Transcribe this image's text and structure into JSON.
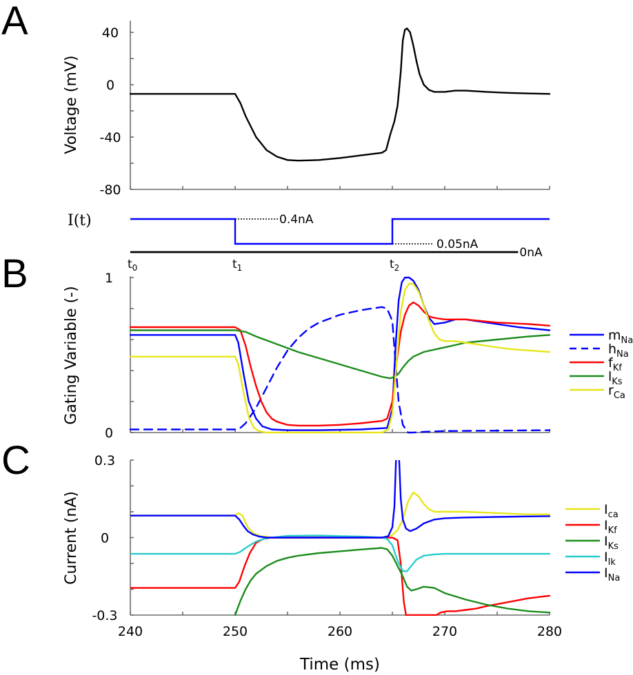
{
  "figure": {
    "panels": {
      "A": "A",
      "B": "B",
      "C": "C"
    }
  },
  "chart_data": [
    {
      "id": "A",
      "type": "line",
      "title": "",
      "xlabel": "",
      "ylabel": "Voltage (mV)",
      "xlim": [
        240,
        280
      ],
      "ylim": [
        -80,
        48
      ],
      "yticks": [
        -80,
        -60,
        -40,
        -20,
        0,
        20,
        40
      ],
      "ytick_labels": [
        {
          "value": -80,
          "label": "-80"
        },
        {
          "value": -40,
          "label": "-40"
        },
        {
          "value": 0,
          "label": "0"
        },
        {
          "value": 40,
          "label": "40"
        }
      ],
      "xticks": [
        240,
        245,
        250,
        255,
        260,
        265,
        270,
        275,
        280
      ],
      "series": [
        {
          "name": "V",
          "color": "#000000",
          "x": [
            240,
            250,
            250.5,
            251,
            252,
            253,
            254,
            255,
            256,
            257,
            258,
            260,
            262,
            263,
            264,
            264.4,
            264.8,
            265.2,
            265.5,
            265.8,
            266.0,
            266.2,
            266.4,
            266.7,
            267.0,
            267.3,
            267.6,
            268.0,
            268.5,
            269,
            270,
            271,
            272,
            274,
            276,
            278,
            280
          ],
          "y": [
            -7,
            -7,
            -14,
            -24,
            -40,
            -50,
            -55,
            -57.5,
            -58,
            -57.8,
            -57.5,
            -56,
            -54,
            -53,
            -52,
            -50,
            -38,
            -28,
            -16,
            10,
            34,
            42,
            43,
            40,
            30,
            18,
            8,
            0,
            -4,
            -5.5,
            -5.5,
            -4.5,
            -4.5,
            -5.5,
            -6.2,
            -6.7,
            -7
          ]
        }
      ]
    },
    {
      "id": "stimulus",
      "type": "line",
      "ylabel": "I(t)",
      "xlim": [
        240,
        280
      ],
      "series": [
        {
          "name": "I(t)",
          "color": "#0000ff",
          "x": [
            240,
            250,
            250,
            265,
            265,
            280
          ],
          "y": [
            0.4,
            0.4,
            0.05,
            0.05,
            0.4,
            0.4
          ]
        },
        {
          "name": "baseline",
          "color": "#000000",
          "x": [
            240,
            277
          ],
          "y": [
            0,
            0
          ]
        }
      ],
      "annotations": [
        {
          "text": "0.4nA",
          "x": 250,
          "level": "high"
        },
        {
          "text": "0.05nA",
          "x": 265,
          "level": "low"
        },
        {
          "text": "0nA",
          "x": 277,
          "level": "zero"
        }
      ],
      "time_markers": [
        {
          "label": "t",
          "sub": "0",
          "x": 240
        },
        {
          "label": "t",
          "sub": "1",
          "x": 250
        },
        {
          "label": "t",
          "sub": "2",
          "x": 265
        }
      ]
    },
    {
      "id": "B",
      "type": "line",
      "xlabel": "",
      "ylabel": "Gating Variable (-)",
      "xlim": [
        240,
        280
      ],
      "ylim": [
        0,
        1
      ],
      "yticks": [
        0,
        0.2,
        0.4,
        0.6,
        0.8,
        1
      ],
      "ytick_labels": [
        {
          "value": 0,
          "label": "0"
        },
        {
          "value": 1,
          "label": "1"
        }
      ],
      "xticks": [
        240,
        245,
        250,
        255,
        260,
        265,
        270,
        275,
        280
      ],
      "legend": "right",
      "series": [
        {
          "name": "m",
          "sub": "Na",
          "color": "#0000ff",
          "dash": false,
          "x": [
            240,
            250,
            250.3,
            250.8,
            251.3,
            252,
            252.6,
            253.5,
            255,
            258,
            262,
            264.5,
            265,
            265.3,
            265.6,
            265.9,
            266.2,
            266.6,
            267,
            267.5,
            268,
            268.5,
            269,
            270,
            271,
            272,
            274,
            277,
            280
          ],
          "y": [
            0.63,
            0.63,
            0.58,
            0.38,
            0.2,
            0.09,
            0.04,
            0.02,
            0.015,
            0.015,
            0.02,
            0.03,
            0.15,
            0.55,
            0.85,
            0.97,
            1.0,
            1.0,
            0.98,
            0.92,
            0.82,
            0.74,
            0.7,
            0.71,
            0.73,
            0.73,
            0.71,
            0.68,
            0.66
          ]
        },
        {
          "name": "h",
          "sub": "Na",
          "color": "#0000ff",
          "dash": true,
          "x": [
            240,
            250,
            250.5,
            251,
            252,
            253,
            254,
            255,
            256,
            257,
            258,
            260,
            262,
            263,
            264,
            264.5,
            265,
            265.3,
            265.6,
            266,
            266.5,
            267,
            268,
            270,
            280
          ],
          "y": [
            0.02,
            0.02,
            0.03,
            0.06,
            0.16,
            0.29,
            0.42,
            0.53,
            0.61,
            0.67,
            0.71,
            0.76,
            0.79,
            0.8,
            0.81,
            0.8,
            0.72,
            0.45,
            0.2,
            0.05,
            0.0,
            0.0,
            0.005,
            0.01,
            0.015
          ]
        },
        {
          "name": "f",
          "sub": "Kf",
          "color": "#ff0000",
          "dash": false,
          "x": [
            240,
            250,
            250.5,
            251,
            251.5,
            252,
            252.5,
            253,
            253.5,
            254,
            255,
            256,
            258,
            260,
            262,
            264,
            264.5,
            265,
            265.4,
            265.8,
            266.2,
            266.6,
            267,
            267.5,
            268,
            268.5,
            269,
            270,
            272,
            275,
            278,
            280
          ],
          "y": [
            0.68,
            0.68,
            0.66,
            0.56,
            0.42,
            0.3,
            0.2,
            0.13,
            0.09,
            0.07,
            0.05,
            0.045,
            0.045,
            0.05,
            0.06,
            0.075,
            0.09,
            0.2,
            0.45,
            0.65,
            0.76,
            0.82,
            0.84,
            0.82,
            0.78,
            0.75,
            0.74,
            0.73,
            0.73,
            0.71,
            0.7,
            0.69
          ]
        },
        {
          "name": "l",
          "sub": "Ks",
          "color": "#1a8c1a",
          "dash": false,
          "x": [
            240,
            250,
            251,
            252,
            254,
            256,
            258,
            260,
            262,
            264,
            264.8,
            265.2,
            265.6,
            266,
            266.5,
            267,
            268,
            270,
            272,
            275,
            278,
            280
          ],
          "y": [
            0.66,
            0.66,
            0.65,
            0.62,
            0.57,
            0.52,
            0.48,
            0.44,
            0.4,
            0.36,
            0.35,
            0.36,
            0.38,
            0.42,
            0.46,
            0.49,
            0.52,
            0.55,
            0.58,
            0.6,
            0.62,
            0.63
          ]
        },
        {
          "name": "r",
          "sub": "Ca",
          "color": "#e6e619",
          "dash": false,
          "x": [
            240,
            250,
            250.3,
            250.8,
            251.3,
            251.8,
            252.3,
            253,
            255,
            260,
            264,
            264.6,
            265,
            265.4,
            265.8,
            266.2,
            266.6,
            267,
            267.5,
            268,
            268.5,
            269,
            269.5,
            270,
            271,
            272,
            274,
            276,
            278,
            280
          ],
          "y": [
            0.49,
            0.49,
            0.44,
            0.26,
            0.1,
            0.03,
            0.008,
            0.0,
            0.0,
            0.0,
            0.0,
            0.02,
            0.12,
            0.45,
            0.78,
            0.92,
            0.96,
            0.96,
            0.91,
            0.82,
            0.72,
            0.64,
            0.6,
            0.59,
            0.59,
            0.58,
            0.56,
            0.54,
            0.53,
            0.52
          ]
        }
      ]
    },
    {
      "id": "C",
      "type": "line",
      "xlabel": "Time (ms)",
      "ylabel": "Current (nA)",
      "xlim": [
        240,
        280
      ],
      "ylim": [
        -0.3,
        0.3
      ],
      "yticks": [
        -0.3,
        -0.2,
        -0.1,
        0,
        0.1,
        0.2,
        0.3
      ],
      "ytick_labels": [
        {
          "value": -0.3,
          "label": "-0.3"
        },
        {
          "value": 0,
          "label": "0"
        },
        {
          "value": 0.3,
          "label": "0.3"
        }
      ],
      "xticks": [
        240,
        245,
        250,
        255,
        260,
        265,
        270,
        275,
        280
      ],
      "xtick_labels": [
        {
          "value": 240,
          "label": "240"
        },
        {
          "value": 250,
          "label": "250"
        },
        {
          "value": 260,
          "label": "260"
        },
        {
          "value": 270,
          "label": "270"
        },
        {
          "value": 280,
          "label": "280"
        }
      ],
      "legend": "right",
      "series": [
        {
          "name": "I",
          "sub": "ca",
          "color": "#e6e619",
          "x": [
            240,
            250,
            250.3,
            250.7,
            251.2,
            251.8,
            252.5,
            253.5,
            255,
            260,
            264,
            265,
            265.5,
            266,
            266.5,
            267,
            267.5,
            268,
            268.5,
            269,
            270,
            272,
            275,
            278,
            280
          ],
          "y": [
            0.085,
            0.085,
            0.095,
            0.085,
            0.04,
            0.015,
            0.005,
            0.0,
            0.0,
            0.0,
            0.0,
            0.01,
            0.03,
            0.07,
            0.14,
            0.175,
            0.16,
            0.13,
            0.11,
            0.1,
            0.1,
            0.1,
            0.095,
            0.09,
            0.09
          ]
        },
        {
          "name": "I",
          "sub": "Kf",
          "color": "#ff0000",
          "x": [
            240,
            250,
            250.4,
            250.9,
            251.4,
            252,
            252.7,
            253.5,
            255,
            260,
            264,
            265,
            265.5,
            265.8,
            266.1,
            266.3,
            269.2,
            269.6,
            270.2,
            271,
            272,
            273,
            274,
            276,
            278,
            280
          ],
          "y": [
            -0.195,
            -0.195,
            -0.17,
            -0.11,
            -0.06,
            -0.02,
            -0.005,
            0.0,
            0.0,
            0.0,
            0.0,
            0.0,
            -0.01,
            -0.1,
            -0.25,
            -0.3,
            -0.3,
            -0.29,
            -0.285,
            -0.285,
            -0.28,
            -0.275,
            -0.265,
            -0.25,
            -0.235,
            -0.225
          ]
        },
        {
          "name": "I",
          "sub": "Ks",
          "color": "#1a8c1a",
          "x": [
            250,
            250.5,
            251,
            251.5,
            252,
            253,
            254,
            255,
            256,
            258,
            260,
            262,
            264,
            264.5,
            265,
            265.5,
            266,
            266.4,
            266.8,
            267.3,
            268,
            269,
            270,
            272,
            274,
            276,
            278,
            280
          ],
          "y": [
            -0.3,
            -0.245,
            -0.2,
            -0.165,
            -0.14,
            -0.11,
            -0.09,
            -0.078,
            -0.07,
            -0.06,
            -0.053,
            -0.046,
            -0.04,
            -0.045,
            -0.07,
            -0.11,
            -0.15,
            -0.19,
            -0.205,
            -0.2,
            -0.19,
            -0.195,
            -0.215,
            -0.24,
            -0.26,
            -0.275,
            -0.285,
            -0.29
          ]
        },
        {
          "name": "I",
          "sub": "lk",
          "color": "#29cccc",
          "x": [
            240,
            250,
            250.5,
            251,
            252,
            253,
            255,
            258,
            260,
            262,
            264,
            264.5,
            265,
            265.5,
            266,
            266.4,
            266.8,
            267.3,
            268,
            269,
            270,
            275,
            280
          ],
          "y": [
            -0.063,
            -0.063,
            -0.055,
            -0.04,
            -0.015,
            -0.002,
            0.007,
            0.008,
            0.006,
            0.004,
            0.0,
            -0.005,
            -0.03,
            -0.09,
            -0.13,
            -0.13,
            -0.11,
            -0.085,
            -0.07,
            -0.065,
            -0.063,
            -0.063,
            -0.063
          ]
        },
        {
          "name": "I",
          "sub": "Na",
          "color": "#0000ff",
          "x": [
            240,
            250,
            250.4,
            250.8,
            251.2,
            251.7,
            252.3,
            253,
            255,
            260,
            264,
            264.6,
            265,
            265.2,
            265.35,
            265.5,
            265.65,
            265.8,
            266.0,
            266.3,
            266.7,
            267.3,
            268,
            269,
            270,
            272,
            275,
            278,
            280
          ],
          "y": [
            0.085,
            0.085,
            0.07,
            0.045,
            0.025,
            0.012,
            0.004,
            0.0,
            0.0,
            0.0,
            0.0,
            0.005,
            0.04,
            0.12,
            0.3,
            null,
            0.3,
            0.15,
            0.07,
            0.035,
            0.025,
            0.035,
            0.055,
            0.07,
            0.075,
            0.078,
            0.08,
            0.082,
            0.083
          ]
        }
      ]
    }
  ]
}
